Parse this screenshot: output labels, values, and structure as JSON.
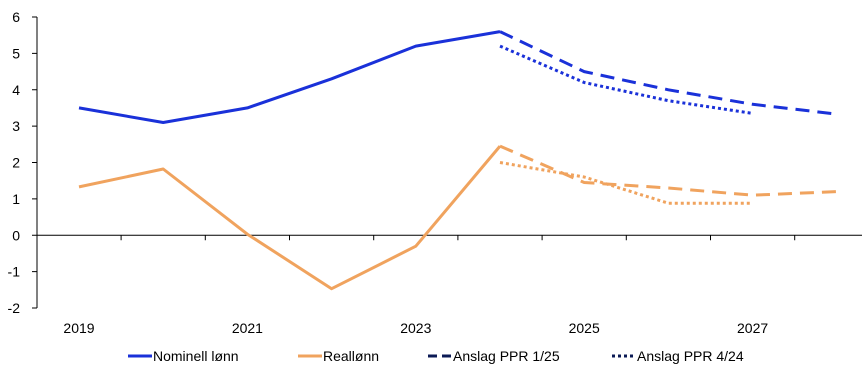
{
  "chart_data": {
    "type": "line",
    "x_ticks": [
      "2019",
      "2021",
      "2023",
      "2025",
      "2027"
    ],
    "y_ticks": [
      "6",
      "5",
      "4",
      "3",
      "2",
      "1",
      "0",
      "-1",
      "-2"
    ],
    "xlim": [
      2019,
      2028
    ],
    "ylim": [
      -2,
      6
    ],
    "grid": false,
    "legend_position": "bottom",
    "colors": {
      "nominal": "#1a31d9",
      "real": "#f0a35e",
      "legend_style": "#0b1a55"
    },
    "series": [
      {
        "name": "Nominell lønn",
        "color": "#1a31d9",
        "style": "solid",
        "x": [
          2019,
          2020,
          2021,
          2022,
          2023,
          2024
        ],
        "y": [
          3.5,
          3.1,
          3.5,
          4.3,
          5.2,
          5.6
        ]
      },
      {
        "name": "Reallønn",
        "color": "#f0a35e",
        "style": "solid",
        "x": [
          2019,
          2020,
          2021,
          2022,
          2023,
          2024
        ],
        "y": [
          1.33,
          1.82,
          0.03,
          -1.47,
          -0.3,
          2.45
        ]
      },
      {
        "name": "Anslag PPR 1/25",
        "color": "#1a31d9",
        "style": "dashed",
        "x": [
          2024,
          2025,
          2026,
          2027,
          2028
        ],
        "y": [
          5.6,
          4.5,
          4.0,
          3.6,
          3.33
        ]
      },
      {
        "name": "Anslag PPR 1/25",
        "color": "#f0a35e",
        "style": "dashed",
        "x": [
          2024,
          2025,
          2026,
          2027,
          2028
        ],
        "y": [
          2.45,
          1.45,
          1.3,
          1.1,
          1.2
        ]
      },
      {
        "name": "Anslag PPR 4/24",
        "color": "#1a31d9",
        "style": "dotted",
        "x": [
          2024,
          2025,
          2026,
          2027
        ],
        "y": [
          5.2,
          4.2,
          3.7,
          3.35
        ]
      },
      {
        "name": "Anslag PPR 4/24",
        "color": "#f0a35e",
        "style": "dotted",
        "x": [
          2024,
          2025,
          2026,
          2027
        ],
        "y": [
          2.0,
          1.6,
          0.88,
          0.88
        ]
      }
    ],
    "legend": [
      {
        "label": "Nominell lønn",
        "color": "#1a31d9",
        "style": "solid"
      },
      {
        "label": "Reallønn",
        "color": "#f0a35e",
        "style": "solid"
      },
      {
        "label": "Anslag PPR 1/25",
        "color": "#0b1a55",
        "style": "dashed"
      },
      {
        "label": "Anslag PPR 4/24",
        "color": "#0b1a55",
        "style": "dotted"
      }
    ]
  }
}
